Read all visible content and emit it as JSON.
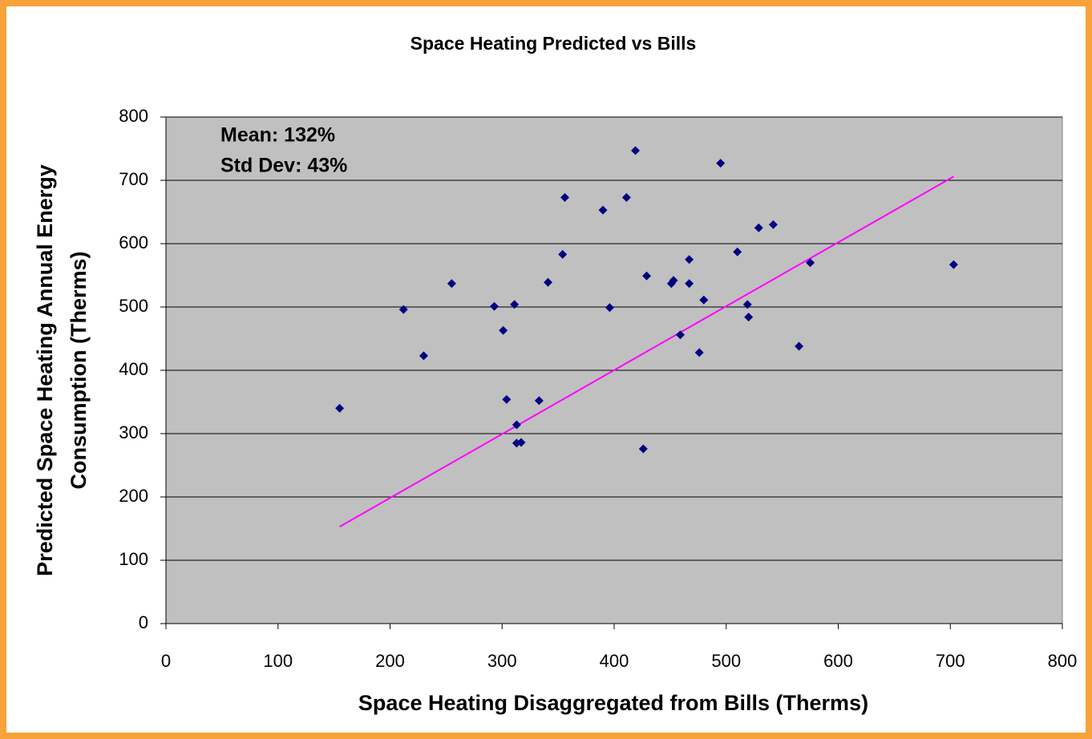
{
  "chart_data": {
    "type": "scatter",
    "title": "Space Heating Predicted vs Bills",
    "x_label": "Space Heating Disaggregated from Bills (Therms)",
    "y_label": [
      "Predicted Space Heating Annual Energy",
      "Consumption (Therms)"
    ],
    "annotations": [
      "Mean: 132%",
      "Std Dev: 43%"
    ],
    "xlim": [
      0,
      800
    ],
    "ylim": [
      0,
      800
    ],
    "xticks": [
      0,
      100,
      200,
      300,
      400,
      500,
      600,
      700,
      800
    ],
    "yticks": [
      0,
      100,
      200,
      300,
      400,
      500,
      600,
      700,
      800
    ],
    "grid": true,
    "points": {
      "color": "#000080",
      "x": [
        155,
        212,
        230,
        255,
        293,
        301,
        311,
        304,
        313,
        313,
        317,
        333,
        341,
        354,
        356,
        390,
        396,
        411,
        419,
        426,
        429,
        451,
        453,
        459,
        467,
        467,
        476,
        480,
        495,
        510,
        519,
        520,
        529,
        542,
        565,
        575,
        703
      ],
      "y": [
        340,
        496,
        423,
        537,
        501,
        463,
        504,
        354,
        314,
        285,
        286,
        352,
        539,
        583,
        673,
        653,
        499,
        673,
        747,
        276,
        549,
        537,
        542,
        456,
        575,
        537,
        428,
        511,
        727,
        587,
        504,
        484,
        625,
        630,
        438,
        570,
        567
      ]
    },
    "line": {
      "color": "#ff00ff",
      "x": [
        155,
        703
      ],
      "y": [
        153,
        706
      ]
    }
  }
}
